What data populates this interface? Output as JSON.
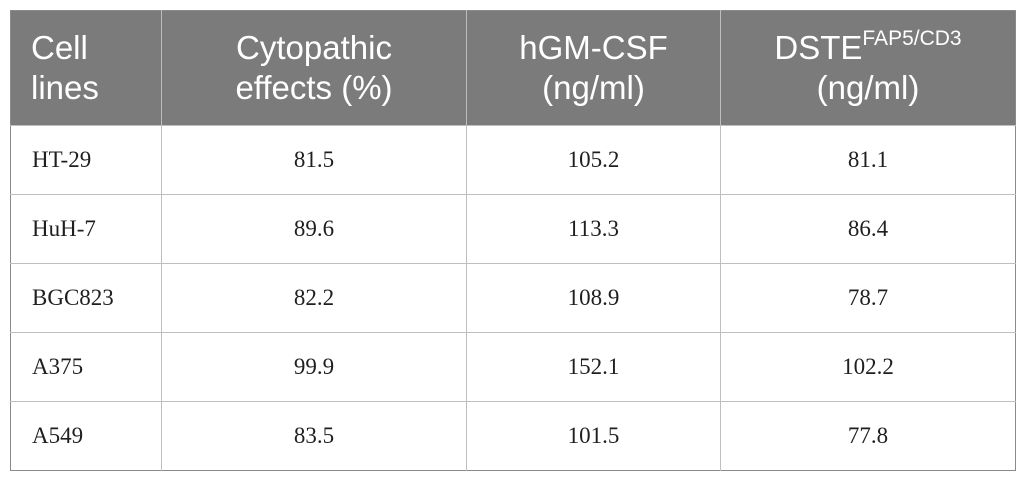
{
  "table": {
    "headers": [
      {
        "line1": "Cell",
        "line2": "lines"
      },
      {
        "line1": "Cytopathic",
        "line2": "effects (%)"
      },
      {
        "line1": "hGM-CSF",
        "line2": "(ng/ml)"
      },
      {
        "line1": "DSTE",
        "superscript": "FAP5/CD3",
        "line2": "(ng/ml)"
      }
    ],
    "rows": [
      {
        "cell_line": "HT-29",
        "cytopathic": "81.5",
        "hgmcsf": "105.2",
        "dste": "81.1"
      },
      {
        "cell_line": "HuH-7",
        "cytopathic": "89.6",
        "hgmcsf": "113.3",
        "dste": "86.4"
      },
      {
        "cell_line": "BGC823",
        "cytopathic": "82.2",
        "hgmcsf": "108.9",
        "dste": "78.7"
      },
      {
        "cell_line": "A375",
        "cytopathic": "99.9",
        "hgmcsf": "152.1",
        "dste": "102.2"
      },
      {
        "cell_line": "A549",
        "cytopathic": "83.5",
        "hgmcsf": "101.5",
        "dste": "77.8"
      }
    ]
  },
  "colors": {
    "header_background": "#7b7b7b",
    "header_text": "#ffffff",
    "body_text": "#1f1f1f",
    "grid_line": "#bfbfbf"
  }
}
